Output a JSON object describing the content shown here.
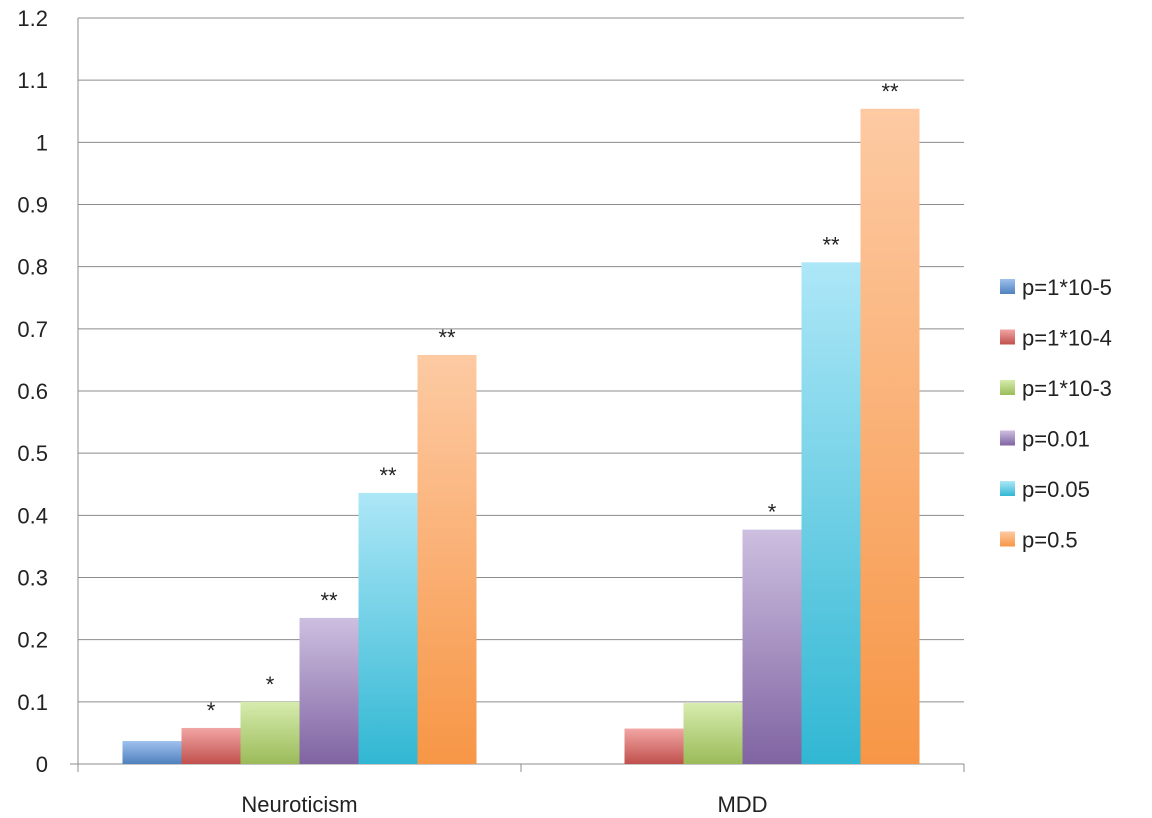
{
  "chart_data": {
    "type": "bar",
    "categories": [
      "Neuroticism",
      "MDD"
    ],
    "ylim": [
      0,
      1.2
    ],
    "yticks": [
      "0",
      "0.1",
      "0.2",
      "0.3",
      "0.4",
      "0.5",
      "0.6",
      "0.7",
      "0.8",
      "0.9",
      "1",
      "1.1",
      "1.2"
    ],
    "grid": true,
    "legend_position": "right",
    "series": [
      {
        "name": "p=1*10-5",
        "color": "#4f81bd",
        "light": "#9fc1ee",
        "values": [
          0.037,
          null
        ],
        "sig": [
          "",
          ""
        ]
      },
      {
        "name": "p=1*10-4",
        "color": "#c0504d",
        "light": "#f2a6a4",
        "values": [
          0.058,
          0.057
        ],
        "sig": [
          "*",
          ""
        ]
      },
      {
        "name": "p=1*10-3",
        "color": "#9bbb59",
        "light": "#d6ecae",
        "values": [
          0.1,
          0.098
        ],
        "sig": [
          "*",
          ""
        ]
      },
      {
        "name": "p=0.01",
        "color": "#8064a2",
        "light": "#cdbfe0",
        "values": [
          0.235,
          0.377
        ],
        "sig": [
          "**",
          "*"
        ]
      },
      {
        "name": "p=0.05",
        "color": "#31b7d3",
        "light": "#ade7f7",
        "values": [
          0.436,
          0.807
        ],
        "sig": [
          "**",
          "**"
        ]
      },
      {
        "name": "p=0.5",
        "color": "#f79646",
        "light": "#fdcaa3",
        "values": [
          0.658,
          1.054
        ],
        "sig": [
          "**",
          "**"
        ]
      }
    ]
  }
}
